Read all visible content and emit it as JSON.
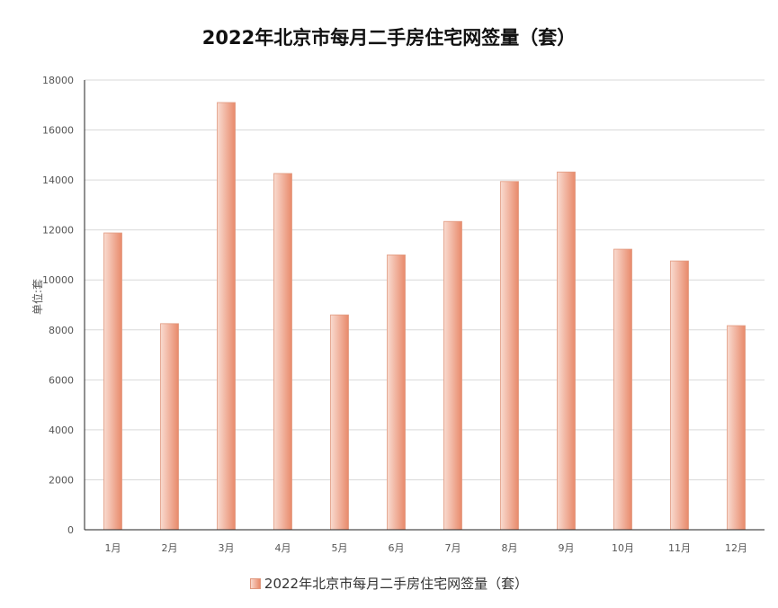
{
  "chart_data": {
    "type": "bar",
    "title": "2022年北京市每月二手房住宅网签量（套）",
    "ylabel": "单位:套",
    "xlabel": "",
    "categories": [
      "1月",
      "2月",
      "3月",
      "4月",
      "5月",
      "6月",
      "7月",
      "8月",
      "9月",
      "10月",
      "11月",
      "12月"
    ],
    "series": [
      {
        "name": "2022年北京市每月二手房住宅网签量（套）",
        "values": [
          11880,
          8250,
          17100,
          14260,
          8600,
          11000,
          12340,
          13940,
          14320,
          11230,
          10760,
          8170
        ]
      }
    ],
    "ylim": [
      0,
      18000
    ],
    "yticks": [
      "0",
      "2000",
      "4000",
      "6000",
      "8000",
      "10000",
      "12000",
      "14000",
      "16000",
      "18000"
    ],
    "grid": true,
    "legend_position": "bottom",
    "colors": {
      "bar_light": "#f9dbd0",
      "bar_dark": "#e88a6b",
      "grid": "#d9d9d9",
      "axis": "#222222"
    }
  }
}
